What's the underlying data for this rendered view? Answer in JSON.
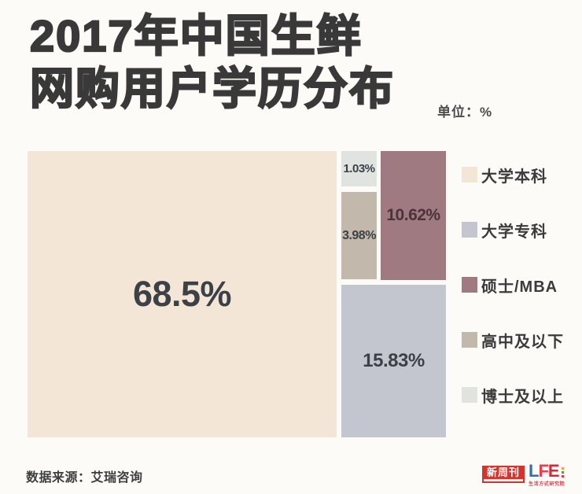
{
  "page": {
    "background": "#fcfbf8"
  },
  "title": {
    "line1": "2017年中国生鲜",
    "line2": "网购用户学历分布",
    "unit_label": "单位：%"
  },
  "chart_data": {
    "type": "treemap",
    "title": "2017年中国生鲜网购用户学历分布",
    "unit": "%",
    "source": "艾瑞咨询",
    "legend_position": "right",
    "items": [
      {
        "label": "大学本科",
        "value": 68.5,
        "display": "68.5%",
        "color": "#f3e6d6"
      },
      {
        "label": "大学专科",
        "value": 15.83,
        "display": "15.83%",
        "color": "#c3c6cf"
      },
      {
        "label": "硕士/MBA",
        "value": 10.62,
        "display": "10.62%",
        "color": "#9f7a80"
      },
      {
        "label": "高中及以下",
        "value": 3.98,
        "display": "3.98%",
        "color": "#c2b9ac"
      },
      {
        "label": "博士及以上",
        "value": 1.03,
        "display": "1.03%",
        "color": "#e0e3df"
      }
    ]
  },
  "footer": {
    "source": "数据来源：艾瑞咨询",
    "logo_xinzhoukan": {
      "text": "新周刊",
      "bg": "#d5342c"
    },
    "logo_life": {
      "letter_l": "L",
      "letter_f": "F",
      "letter_e": "E",
      "color_l": "#2f6db4",
      "color_f": "#e8404f",
      "color_e": "#d6283a",
      "subtext": "生活方式研究院"
    }
  }
}
